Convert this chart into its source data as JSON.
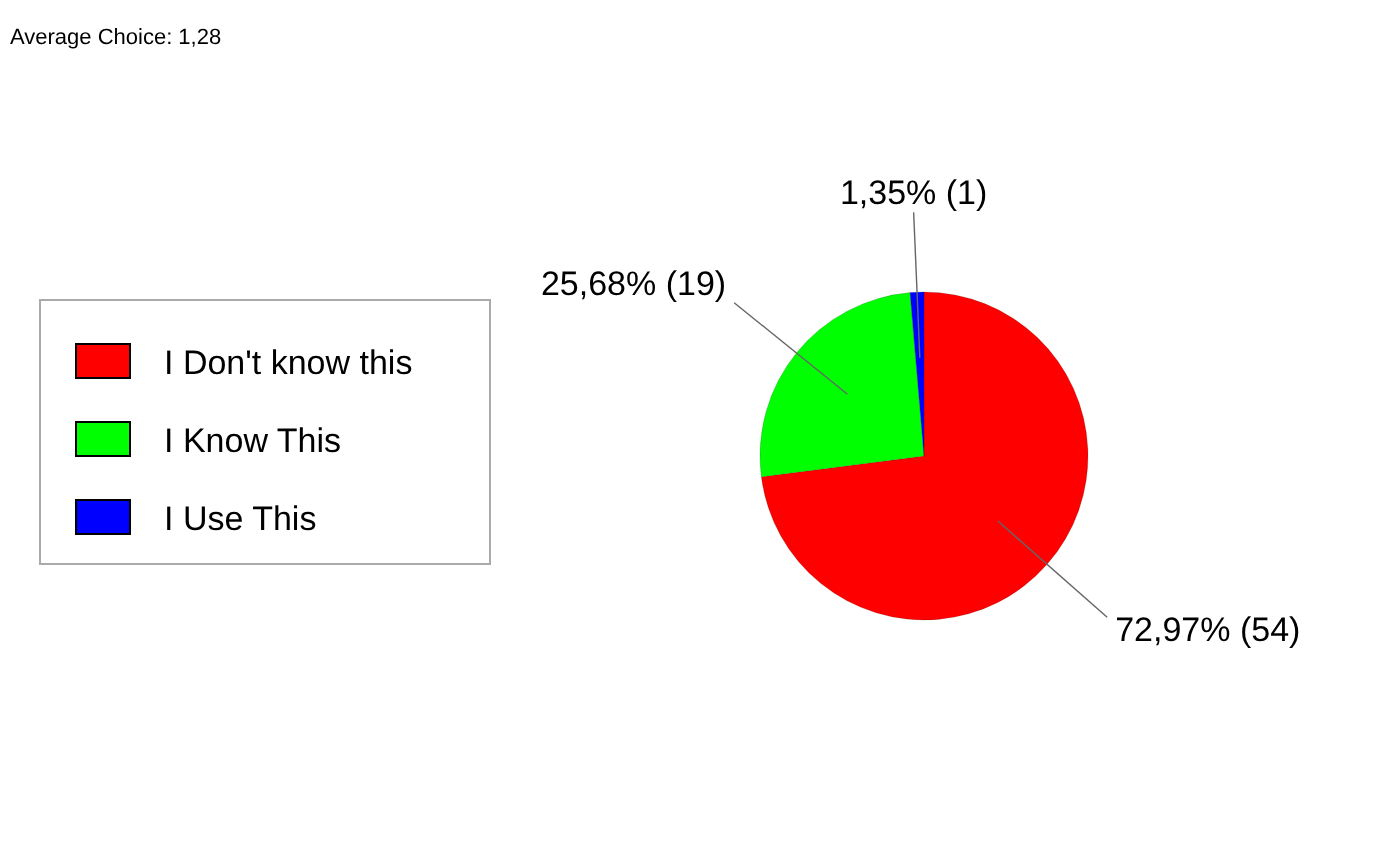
{
  "chart_data": {
    "type": "pie",
    "annotations": [
      "Average Choice: 1,28"
    ],
    "categories": [
      "I Don't know this",
      "I Know This",
      "I Use This"
    ],
    "values": [
      54,
      19,
      1
    ],
    "colors": [
      "#ff0000",
      "#00ff00",
      "#0000ff"
    ],
    "value_labels": [
      "72,97% (54)",
      "25,68% (19)",
      "1,35% (1)"
    ],
    "legend": "left"
  }
}
